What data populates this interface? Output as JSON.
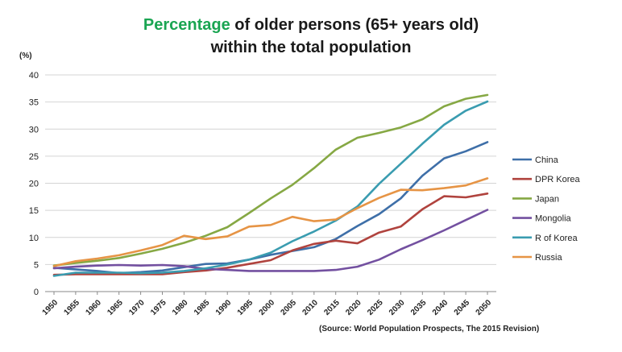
{
  "chart_data": {
    "type": "line",
    "title_accent": "Percentage",
    "title_rest": "of older persons (65+ years old)",
    "title_line2": "within the total population",
    "ylabel": "(%)",
    "ylim": [
      0,
      40
    ],
    "yticks": [
      0,
      5,
      10,
      15,
      20,
      25,
      30,
      35,
      40
    ],
    "categories": [
      "1950",
      "1955",
      "1960",
      "1965",
      "1970",
      "1975",
      "1980",
      "1985",
      "1990",
      "1995",
      "2000",
      "2005",
      "2010",
      "2015",
      "2020",
      "2025",
      "2030",
      "2035",
      "2040",
      "2045",
      "2050"
    ],
    "grid": "horizontal",
    "legend_position": "right",
    "source": "(Source: World Population Prospects, The 2015 Revision)",
    "series": [
      {
        "name": "China",
        "color": "#3e6fa8",
        "values": [
          4.4,
          4.1,
          3.8,
          3.4,
          3.6,
          3.9,
          4.5,
          5.1,
          5.2,
          5.9,
          6.8,
          7.5,
          8.2,
          9.7,
          12.1,
          14.3,
          17.2,
          21.4,
          24.6,
          25.9,
          27.6
        ]
      },
      {
        "name": "DPR Korea",
        "color": "#b0433e",
        "values": [
          3.1,
          3.2,
          3.2,
          3.2,
          3.2,
          3.2,
          3.6,
          3.9,
          4.4,
          5.1,
          5.8,
          7.6,
          8.8,
          9.4,
          8.9,
          10.9,
          12.0,
          15.2,
          17.6,
          17.4,
          18.1
        ]
      },
      {
        "name": "Japan",
        "color": "#86a844",
        "values": [
          4.8,
          5.3,
          5.7,
          6.2,
          7.0,
          7.9,
          9.0,
          10.3,
          11.9,
          14.5,
          17.2,
          19.7,
          22.8,
          26.2,
          28.4,
          29.3,
          30.3,
          31.8,
          34.2,
          35.6,
          36.3
        ]
      },
      {
        "name": "Mongolia",
        "color": "#7350a0",
        "values": [
          4.3,
          4.6,
          4.8,
          4.9,
          4.8,
          4.9,
          4.7,
          4.2,
          4.0,
          3.8,
          3.8,
          3.8,
          3.8,
          4.0,
          4.6,
          5.9,
          7.8,
          9.5,
          11.3,
          13.2,
          15.1
        ]
      },
      {
        "name": "R of Korea",
        "color": "#3a9cb0",
        "values": [
          2.9,
          3.5,
          3.5,
          3.5,
          3.4,
          3.5,
          3.8,
          4.3,
          5.0,
          5.9,
          7.2,
          9.3,
          11.1,
          13.1,
          15.7,
          19.9,
          23.6,
          27.3,
          30.8,
          33.4,
          35.1
        ]
      },
      {
        "name": "Russia",
        "color": "#e69445",
        "values": [
          4.7,
          5.6,
          6.1,
          6.7,
          7.6,
          8.6,
          10.3,
          9.7,
          10.2,
          12.0,
          12.3,
          13.8,
          13.0,
          13.3,
          15.4,
          17.3,
          18.8,
          18.7,
          19.1,
          19.6,
          20.9
        ]
      }
    ]
  }
}
